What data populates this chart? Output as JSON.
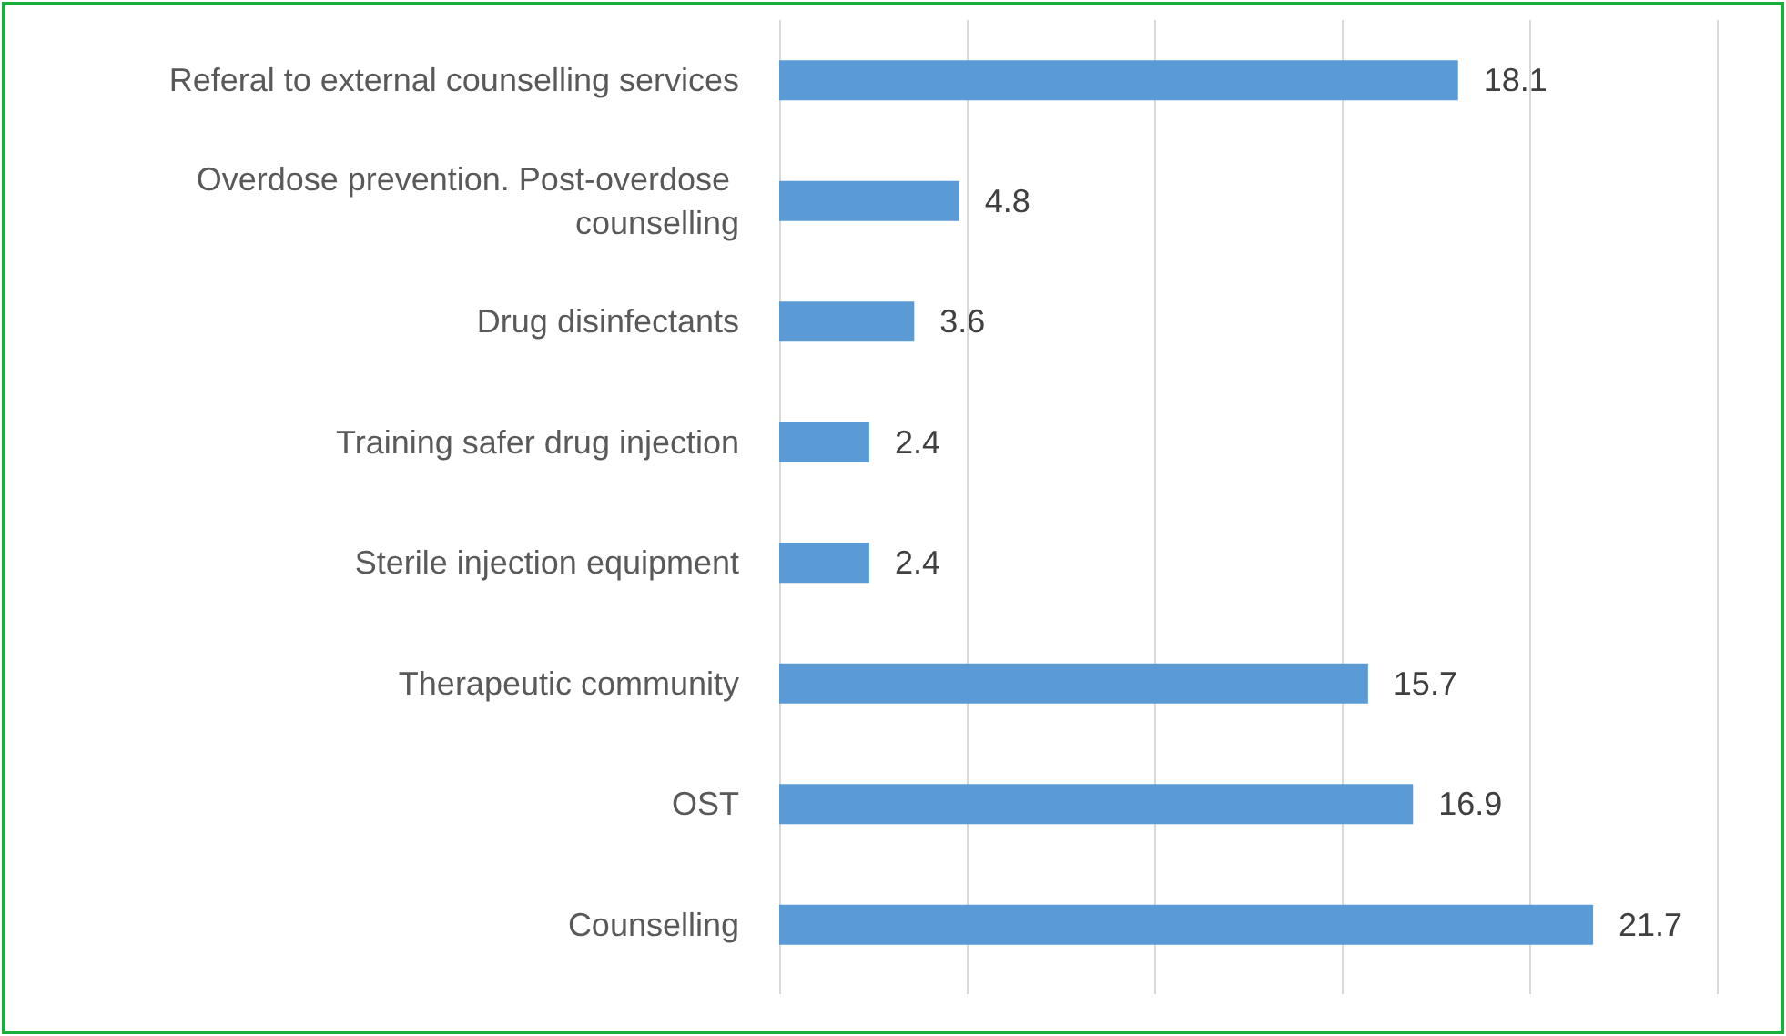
{
  "chart_data": {
    "type": "bar",
    "orientation": "horizontal",
    "categories": [
      "Referal to external counselling services",
      "Overdose prevention. Post-overdose counselling",
      "Drug disinfectants",
      "Training safer drug injection",
      "Sterile injection equipment",
      "Therapeutic community",
      "OST",
      "Counselling"
    ],
    "values": [
      18.1,
      4.8,
      3.6,
      2.4,
      2.4,
      15.7,
      16.9,
      21.7
    ],
    "color": "#5b9bd5",
    "xlim": [
      0,
      25
    ],
    "xticks": [
      {
        "value": 0,
        "label": null
      },
      {
        "value": 5,
        "label": null
      },
      {
        "value": 10,
        "label": null
      },
      {
        "value": 15,
        "label": null
      },
      {
        "value": 20,
        "label": null
      },
      {
        "value": 25,
        "label": null
      }
    ],
    "grid": "x",
    "tick_labels": "y",
    "data_labels": true
  }
}
